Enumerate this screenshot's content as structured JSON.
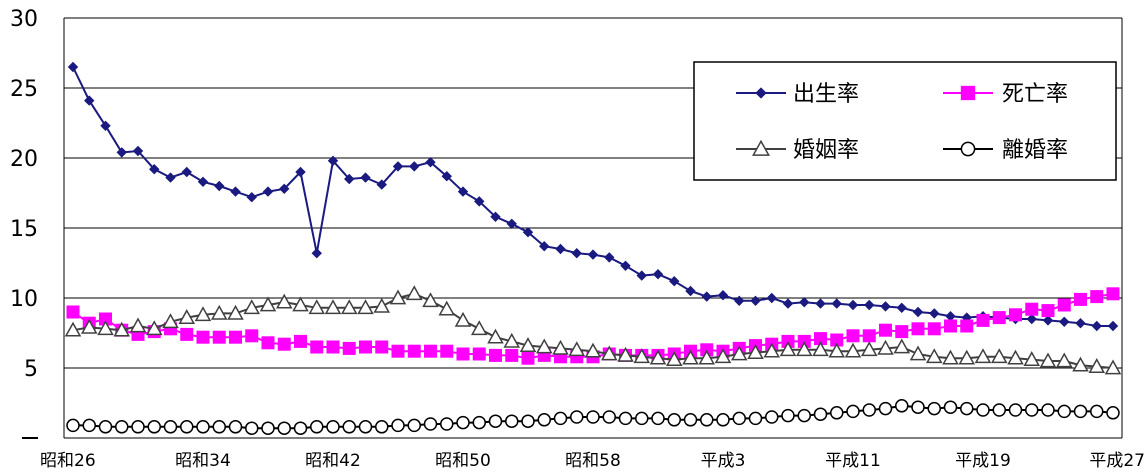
{
  "chart_data": {
    "type": "line",
    "x_labels": [
      "昭和26",
      "昭和34",
      "昭和42",
      "昭和50",
      "昭和58",
      "平成3",
      "平成11",
      "平成19",
      "平成27"
    ],
    "yticks": [
      "30",
      "25",
      "20",
      "15",
      "10",
      "5"
    ],
    "ylim": [
      0,
      30
    ],
    "grid": "horizontal",
    "legend_placement": "top-right",
    "x_count": 65,
    "series": [
      {
        "name": "出生率",
        "color": "#1a1a80",
        "marker": "diamond",
        "values": [
          26.5,
          24.1,
          22.3,
          20.4,
          20.5,
          19.2,
          18.6,
          19.0,
          18.3,
          18.0,
          17.6,
          17.2,
          17.6,
          17.8,
          19.0,
          13.2,
          19.8,
          18.5,
          18.6,
          18.1,
          19.4,
          19.4,
          19.7,
          18.7,
          17.6,
          16.9,
          15.8,
          15.3,
          14.7,
          13.7,
          13.5,
          13.2,
          13.1,
          12.9,
          12.3,
          11.6,
          11.7,
          11.2,
          10.5,
          10.1,
          10.2,
          9.8,
          9.8,
          10.0,
          9.6,
          9.7,
          9.6,
          9.6,
          9.5,
          9.5,
          9.4,
          9.3,
          9.0,
          8.9,
          8.7,
          8.6,
          8.7,
          8.6,
          8.5,
          8.5,
          8.4,
          8.3,
          8.2,
          8.0,
          8.0
        ]
      },
      {
        "name": "死亡率",
        "color": "#ff00ff",
        "marker": "square",
        "values": [
          9.0,
          8.2,
          8.5,
          7.7,
          7.4,
          7.6,
          7.8,
          7.4,
          7.2,
          7.2,
          7.2,
          7.3,
          6.8,
          6.7,
          6.9,
          6.5,
          6.5,
          6.4,
          6.5,
          6.5,
          6.2,
          6.2,
          6.2,
          6.2,
          6.0,
          6.0,
          5.9,
          5.9,
          5.7,
          5.9,
          5.8,
          5.8,
          5.8,
          6.0,
          5.9,
          5.9,
          5.9,
          6.0,
          6.2,
          6.3,
          6.2,
          6.4,
          6.6,
          6.7,
          6.9,
          6.9,
          7.1,
          7.0,
          7.3,
          7.3,
          7.7,
          7.6,
          7.8,
          7.8,
          8.0,
          8.0,
          8.4,
          8.6,
          8.8,
          9.2,
          9.1,
          9.5,
          9.9,
          10.1,
          10.3
        ]
      },
      {
        "name": "婚姻率",
        "color": "#404040",
        "marker": "triangle",
        "values": [
          7.7,
          7.9,
          7.8,
          7.7,
          8.0,
          7.8,
          8.3,
          8.6,
          8.8,
          8.9,
          8.9,
          9.3,
          9.5,
          9.7,
          9.5,
          9.3,
          9.3,
          9.3,
          9.3,
          9.4,
          10.0,
          10.3,
          9.8,
          9.2,
          8.4,
          7.8,
          7.2,
          6.9,
          6.6,
          6.5,
          6.4,
          6.3,
          6.2,
          6.0,
          5.9,
          5.8,
          5.7,
          5.6,
          5.7,
          5.7,
          5.8,
          6.0,
          6.1,
          6.2,
          6.3,
          6.3,
          6.3,
          6.2,
          6.2,
          6.3,
          6.4,
          6.5,
          6.0,
          5.8,
          5.7,
          5.7,
          5.8,
          5.8,
          5.7,
          5.6,
          5.5,
          5.5,
          5.2,
          5.1,
          5.0
        ]
      },
      {
        "name": "離婚率",
        "color": "#000000",
        "marker": "circle",
        "values": [
          0.9,
          0.9,
          0.8,
          0.8,
          0.8,
          0.8,
          0.8,
          0.8,
          0.8,
          0.8,
          0.8,
          0.7,
          0.7,
          0.7,
          0.7,
          0.8,
          0.8,
          0.8,
          0.8,
          0.8,
          0.9,
          0.9,
          1.0,
          1.0,
          1.1,
          1.1,
          1.2,
          1.2,
          1.2,
          1.3,
          1.4,
          1.5,
          1.5,
          1.5,
          1.4,
          1.4,
          1.4,
          1.3,
          1.3,
          1.3,
          1.3,
          1.4,
          1.4,
          1.5,
          1.6,
          1.6,
          1.7,
          1.8,
          1.9,
          2.0,
          2.1,
          2.3,
          2.2,
          2.1,
          2.2,
          2.1,
          2.0,
          2.0,
          2.0,
          2.0,
          2.0,
          1.9,
          1.9,
          1.9,
          1.8
        ]
      }
    ]
  }
}
